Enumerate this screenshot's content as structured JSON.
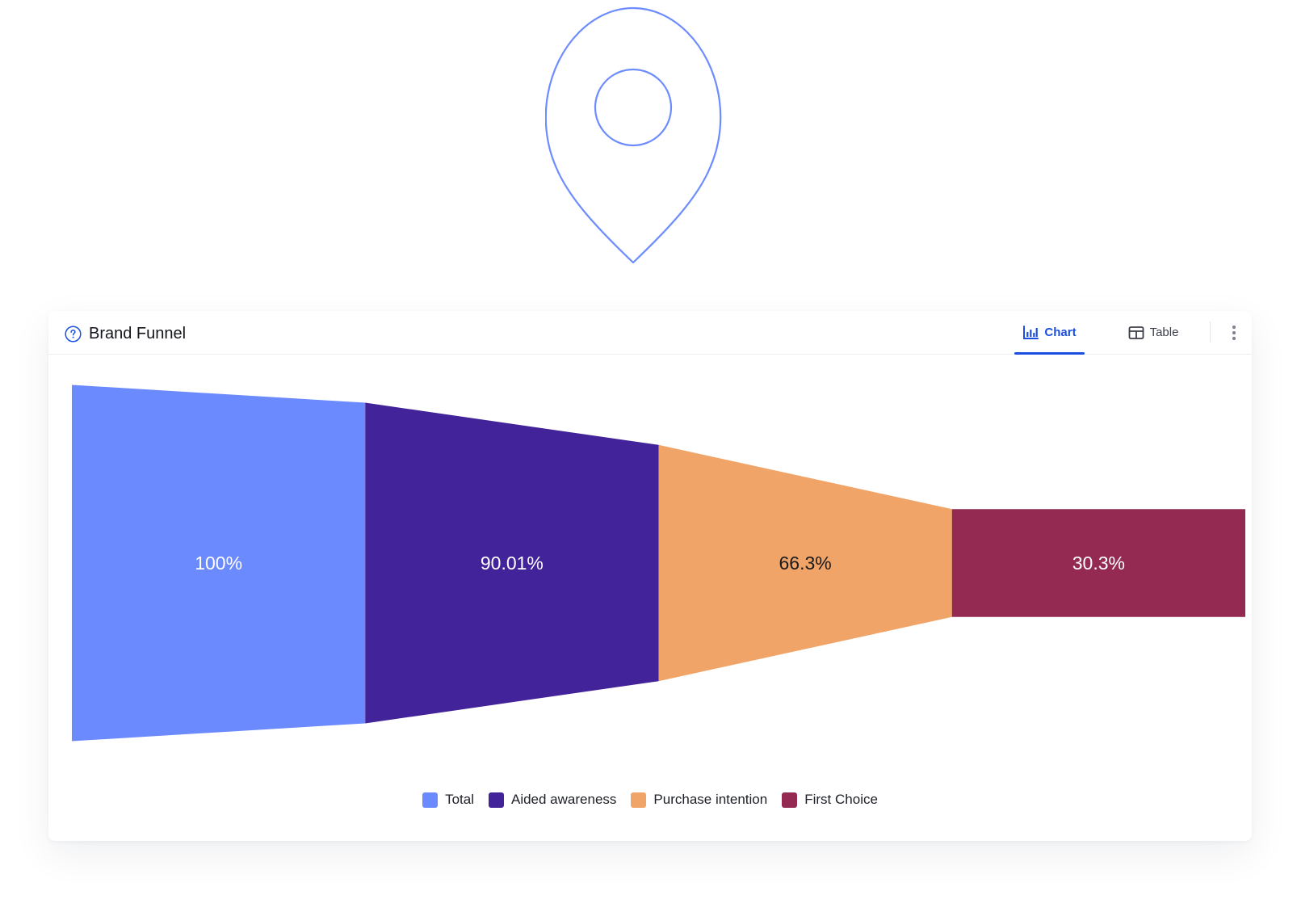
{
  "card": {
    "title": "Brand Funnel",
    "tabs": {
      "chart_label": "Chart",
      "table_label": "Table",
      "active": "chart"
    }
  },
  "icons": {
    "pin": "location-pin-icon",
    "help": "question-circle-icon",
    "chart_tab": "bar-chart-icon",
    "table_tab": "table-icon",
    "more": "more-vertical-icon"
  },
  "colors": {
    "accent": "#1a4fe0",
    "pin_stroke": "#6d8cff"
  },
  "chart_data": {
    "type": "funnel",
    "categories": [
      "Total",
      "Aided awareness",
      "Purchase intention",
      "First Choice"
    ],
    "values": [
      100,
      90.01,
      66.3,
      30.3
    ],
    "labels": [
      "100%",
      "90.01%",
      "66.3%",
      "30.3%"
    ],
    "colors": [
      "#6b8afd",
      "#432399",
      "#f1a468",
      "#942a51"
    ],
    "label_colors": [
      "#ffffff",
      "#ffffff",
      "#1a1a1a",
      "#ffffff"
    ],
    "legend_position": "bottom-center",
    "grid": false
  }
}
